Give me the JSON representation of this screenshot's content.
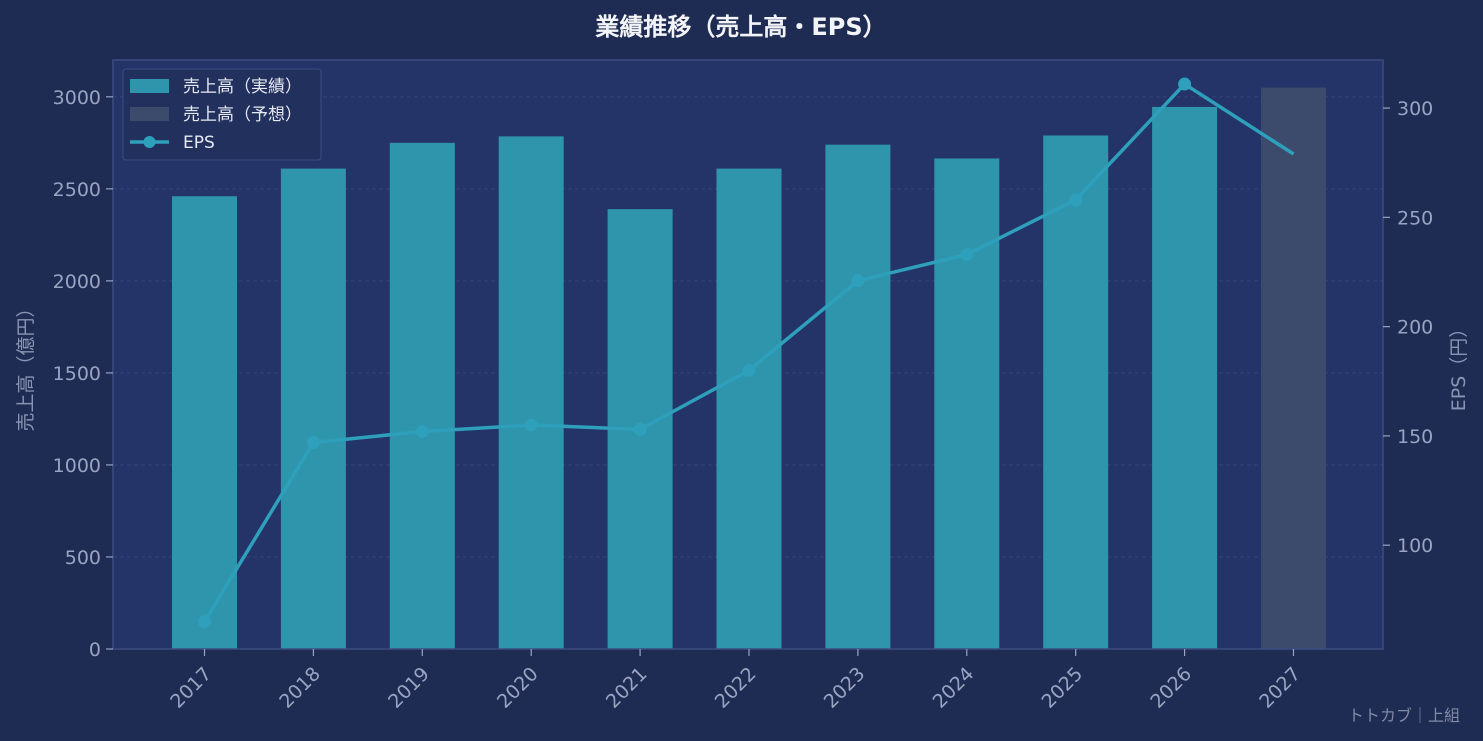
{
  "chart_data": {
    "type": "bar",
    "title": "業績推移（売上高・EPS）",
    "categories": [
      "2017",
      "2018",
      "2019",
      "2020",
      "2021",
      "2022",
      "2023",
      "2024",
      "2025",
      "2026",
      "2027"
    ],
    "series": [
      {
        "name": "売上高（実績）",
        "kind": "bar",
        "axis": "left",
        "values": [
          2460,
          2610,
          2750,
          2785,
          2390,
          2610,
          2740,
          2665,
          2790,
          2945,
          null
        ]
      },
      {
        "name": "売上高（予想）",
        "kind": "bar",
        "axis": "left",
        "values": [
          null,
          null,
          null,
          null,
          null,
          null,
          null,
          null,
          null,
          null,
          3050
        ]
      },
      {
        "name": "EPS",
        "kind": "line",
        "axis": "right",
        "values": [
          65,
          147,
          152,
          155,
          153,
          180,
          221,
          233,
          258,
          311,
          279
        ]
      }
    ],
    "ylabel_left": "売上高（億円）",
    "ylabel_right": "EPS（円）",
    "ylim_left": [
      0,
      3200
    ],
    "ylim_right": [
      52.5,
      322
    ],
    "yticks_left": [
      0,
      500,
      1000,
      1500,
      2000,
      2500,
      3000
    ],
    "yticks_right": [
      100,
      150,
      200,
      250,
      300
    ],
    "grid": true,
    "legend_position": "top-left",
    "colors": {
      "background": "#1e2b52",
      "plot_background": "#243468",
      "actual_bar": "#2e95ad",
      "forecast_bar": "#3c4a6c",
      "eps_line": "#2ea0bb",
      "grid": "#34447a"
    }
  },
  "watermark": "トトカブ｜上組"
}
